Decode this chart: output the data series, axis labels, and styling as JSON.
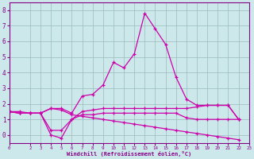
{
  "xlabel": "Windchill (Refroidissement éolien,°C)",
  "bg_color": "#cce8ea",
  "grid_color": "#99bbbb",
  "line_color": "#cc00aa",
  "xlim": [
    0,
    23
  ],
  "ylim": [
    -0.5,
    8.5
  ],
  "xtick_vals": [
    0,
    2,
    3,
    4,
    5,
    6,
    7,
    8,
    9,
    10,
    11,
    12,
    13,
    14,
    15,
    16,
    17,
    18,
    19,
    20,
    21,
    22,
    23
  ],
  "ytick_vals": [
    0,
    1,
    2,
    3,
    4,
    5,
    6,
    7,
    8
  ],
  "ytick_labels": [
    "0",
    "1",
    "2",
    "3",
    "4",
    "5",
    "6",
    "7",
    "8"
  ],
  "series_x": [
    [
      0,
      1,
      2,
      3,
      4,
      5,
      6,
      7,
      8,
      9,
      10,
      11,
      12,
      13,
      14,
      15,
      16,
      17,
      18,
      19,
      20,
      21,
      22
    ],
    [
      0,
      1,
      2,
      3,
      4,
      5,
      6,
      7,
      8,
      9,
      10,
      11,
      12,
      13,
      14,
      15,
      16,
      17,
      18,
      19,
      20,
      21,
      22
    ],
    [
      0,
      1,
      2,
      3,
      4,
      5,
      6,
      7,
      8,
      9,
      10,
      11,
      12,
      13,
      14,
      15,
      16,
      17,
      18,
      19,
      20,
      21,
      22
    ],
    [
      0,
      1,
      2,
      3,
      4,
      5,
      6,
      7,
      8,
      9,
      10,
      11,
      12,
      13,
      14,
      15,
      16,
      17,
      18,
      19,
      20,
      21,
      22
    ]
  ],
  "series_y": [
    [
      1.5,
      1.5,
      1.4,
      1.4,
      1.7,
      1.7,
      1.4,
      2.5,
      2.6,
      3.2,
      4.65,
      4.3,
      5.2,
      7.8,
      6.8,
      5.8,
      3.7,
      2.3,
      1.9,
      1.9,
      1.9,
      1.9,
      1.0
    ],
    [
      1.5,
      1.4,
      1.4,
      1.4,
      0.0,
      -0.2,
      1.0,
      1.5,
      1.6,
      1.7,
      1.7,
      1.7,
      1.7,
      1.7,
      1.7,
      1.7,
      1.7,
      1.7,
      1.8,
      1.9,
      1.9,
      1.9,
      1.0
    ],
    [
      1.5,
      1.4,
      1.4,
      1.4,
      0.3,
      0.3,
      1.0,
      1.3,
      1.3,
      1.4,
      1.4,
      1.4,
      1.4,
      1.4,
      1.4,
      1.4,
      1.4,
      1.1,
      1.0,
      1.0,
      1.0,
      1.0,
      1.0
    ],
    [
      1.5,
      1.4,
      1.4,
      1.4,
      1.7,
      1.6,
      1.3,
      1.2,
      1.1,
      1.0,
      0.9,
      0.8,
      0.7,
      0.6,
      0.5,
      0.4,
      0.3,
      0.2,
      0.1,
      0.0,
      -0.1,
      -0.2,
      -0.3
    ]
  ]
}
